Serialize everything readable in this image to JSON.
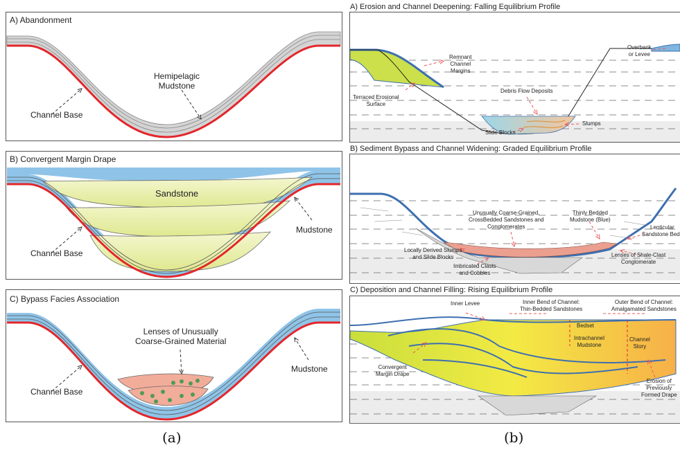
{
  "left": {
    "a": {
      "title": "A) Abandonment",
      "hemipelagic": [
        "Hemipelagic",
        "Mudstone"
      ],
      "channel_base": "Channel Base"
    },
    "b": {
      "title": "B) Convergent Margin Drape",
      "sandstone": "Sandstone",
      "mudstone": "Mudstone",
      "channel_base": "Channel Base"
    },
    "c": {
      "title": "C) Bypass Facies Association",
      "lenses": [
        "Lenses of Unusually",
        "Coarse-Grained Material"
      ],
      "mudstone": "Mudstone",
      "channel_base": "Channel Base"
    }
  },
  "right": {
    "a": {
      "title": "A) Erosion and Channel Deepening: Falling Equilibrium Profile",
      "remnant": [
        "Remnant",
        "Channel",
        "Margins"
      ],
      "overbank": [
        "Overbank",
        "or Levee"
      ],
      "terraced": [
        "Terraced Erosional",
        "Surface"
      ],
      "debris": "Debris Flow Deposits",
      "slumps": "Slumps",
      "slide_blocks": "Slide Blocks"
    },
    "b": {
      "title": "B) Sediment Bypass and Channel Widening: Graded Equilibrium Profile",
      "coarse": [
        "Unusually Coarse-Grained,",
        "CrossBedded Sandstones and",
        "Conglomerates"
      ],
      "thinly": [
        "Thinly Bedded",
        "Mudstone (Blue)"
      ],
      "lenticular": [
        "Lenticular",
        "Sandstone Beds"
      ],
      "locally": [
        "Locally Derived Slumps",
        "and Slide Blocks"
      ],
      "imbricated": [
        "Imbricated Clasts",
        "and Cobbles"
      ],
      "shale": [
        "Lenses of Shale-Clast",
        "Conglomerate"
      ]
    },
    "c": {
      "title": "C) Deposition and Channel Filling: Rising Equilibrium Profile",
      "inner_levee": "Inner Levee",
      "inner_bend": [
        "Inner Bend of Channel:",
        "Thin-Bedded Sandstones"
      ],
      "outer_bend": [
        "Outer Bend of Channel:",
        "Amalgamated Sandstones"
      ],
      "bedset": "Bedset",
      "intrachannel": [
        "Intrachannel",
        "Mudstone"
      ],
      "channel_story": [
        "Channel",
        "Story"
      ],
      "convergent": [
        "Convergent",
        "Margin Drape"
      ],
      "erosion": [
        "Erosion of",
        "Previously",
        "Formed Drape"
      ]
    }
  },
  "captions": {
    "a": "(a)",
    "b": "(b)"
  },
  "colors": {
    "mudstone_blue": "#7fb6df",
    "sandstone_yellow": "#eef2b8",
    "base_red": "#e3262b",
    "lens_pink": "#f2ad9a",
    "pebble_green": "#4f9a57",
    "grey_drape": "#cfcfcf"
  }
}
